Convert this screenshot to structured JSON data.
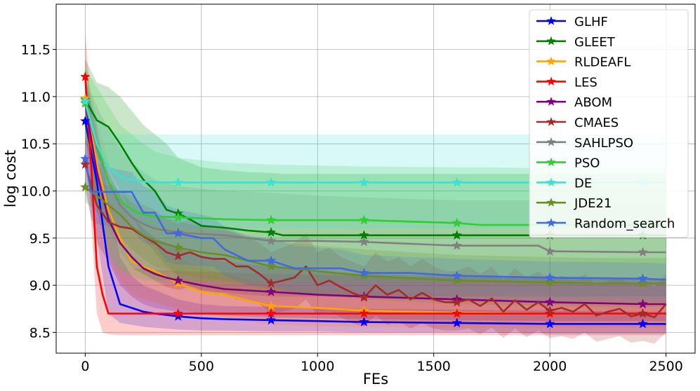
{
  "chart_data": {
    "type": "line",
    "xlabel": "FEs",
    "ylabel": "log cost",
    "xlim": [
      -125,
      2625
    ],
    "ylim": [
      8.28,
      11.98
    ],
    "xticks": [
      0,
      500,
      1000,
      1500,
      2000,
      2500
    ],
    "yticks": [
      8.5,
      9.0,
      9.5,
      10.0,
      10.5,
      11.0,
      11.5
    ],
    "xtick_labels": [
      "0",
      "500",
      "1000",
      "1500",
      "2000",
      "2500"
    ],
    "ytick_labels": [
      "8.5",
      "9.0",
      "9.5",
      "10.0",
      "10.5",
      "11.0",
      "11.5"
    ],
    "grid": true,
    "legend_position": "top-right",
    "marker": "star",
    "marker_x": [
      0,
      400,
      800,
      1200,
      1600,
      2000,
      2400
    ],
    "series": [
      {
        "name": "GLHF",
        "color": "#0000ff",
        "x": [
          0,
          50,
          100,
          150,
          200,
          250,
          300,
          400,
          500,
          600,
          800,
          1000,
          1200,
          1600,
          2000,
          2400,
          2500
        ],
        "y": [
          10.74,
          10.1,
          9.2,
          8.8,
          8.76,
          8.72,
          8.7,
          8.67,
          8.65,
          8.64,
          8.63,
          8.62,
          8.61,
          8.6,
          8.59,
          8.59,
          8.59
        ],
        "band_upper": [
          11.2,
          10.7,
          9.9,
          9.3,
          9.1,
          9.0,
          8.95,
          8.85,
          8.8,
          8.78,
          8.77,
          8.76,
          8.75,
          8.74,
          8.73,
          8.72,
          8.72
        ],
        "band_lower": [
          10.3,
          9.5,
          8.7,
          8.6,
          8.58,
          8.56,
          8.55,
          8.53,
          8.52,
          8.52,
          8.51,
          8.51,
          8.5,
          8.5,
          8.49,
          8.49,
          8.49
        ]
      },
      {
        "name": "GLEET",
        "color": "#008000",
        "x": [
          0,
          50,
          100,
          150,
          200,
          250,
          300,
          350,
          400,
          450,
          500,
          600,
          700,
          800,
          850,
          1000,
          1200,
          1600,
          2000,
          2400,
          2500
        ],
        "y": [
          10.97,
          10.75,
          10.68,
          10.5,
          10.3,
          10.12,
          10.0,
          9.8,
          9.76,
          9.7,
          9.63,
          9.61,
          9.58,
          9.56,
          9.53,
          9.53,
          9.53,
          9.53,
          9.53,
          9.53,
          9.53
        ],
        "band_upper": [
          11.4,
          11.15,
          11.1,
          11.0,
          10.85,
          10.7,
          10.6,
          10.5,
          10.35,
          10.3,
          10.25,
          10.22,
          10.2,
          10.19,
          10.18,
          10.18,
          10.18,
          10.18,
          10.18,
          10.18,
          10.18
        ],
        "band_lower": [
          10.5,
          10.35,
          10.25,
          10.0,
          9.75,
          9.5,
          9.35,
          9.2,
          9.1,
          9.0,
          8.95,
          8.92,
          8.9,
          8.88,
          8.88,
          8.88,
          8.88,
          8.88,
          8.88,
          8.88,
          8.88
        ]
      },
      {
        "name": "RLDEAFL",
        "color": "#ffa500",
        "x": [
          0,
          50,
          100,
          150,
          200,
          250,
          300,
          400,
          500,
          600,
          800,
          1000,
          1200,
          1600,
          2000,
          2400,
          2500
        ],
        "y": [
          10.98,
          10.3,
          9.8,
          9.5,
          9.25,
          9.2,
          9.15,
          9.02,
          8.93,
          8.9,
          8.78,
          8.76,
          8.73,
          8.71,
          8.7,
          8.7,
          8.7
        ],
        "band_upper": [
          11.3,
          10.75,
          10.3,
          9.95,
          9.6,
          9.5,
          9.45,
          9.3,
          9.18,
          9.12,
          9.0,
          8.97,
          8.93,
          8.9,
          8.88,
          8.87,
          8.87
        ],
        "band_lower": [
          10.6,
          9.85,
          9.3,
          9.05,
          8.9,
          8.85,
          8.82,
          8.75,
          8.7,
          8.66,
          8.58,
          8.57,
          8.56,
          8.55,
          8.55,
          8.55,
          8.55
        ]
      },
      {
        "name": "LES",
        "color": "#ff0000",
        "x": [
          0,
          25,
          50,
          75,
          100,
          150,
          200,
          400,
          800,
          1200,
          1600,
          2000,
          2400,
          2500
        ],
        "y": [
          11.21,
          10.3,
          9.2,
          8.9,
          8.7,
          8.7,
          8.7,
          8.7,
          8.7,
          8.7,
          8.7,
          8.7,
          8.7,
          8.7
        ],
        "band_upper": [
          11.7,
          10.9,
          9.9,
          9.5,
          9.25,
          9.2,
          9.18,
          9.15,
          9.12,
          9.1,
          9.08,
          9.07,
          9.06,
          9.06
        ],
        "band_lower": [
          10.7,
          9.7,
          8.7,
          8.5,
          8.48,
          8.47,
          8.47,
          8.47,
          8.47,
          8.47,
          8.47,
          8.47,
          8.47,
          8.47
        ]
      },
      {
        "name": "ABOM",
        "color": "#800080",
        "x": [
          0,
          50,
          100,
          150,
          200,
          250,
          300,
          350,
          400,
          500,
          600,
          800,
          1000,
          1200,
          1600,
          2000,
          2400,
          2500
        ],
        "y": [
          10.93,
          10.2,
          9.7,
          9.45,
          9.3,
          9.18,
          9.12,
          9.08,
          9.05,
          9.0,
          8.96,
          8.93,
          8.9,
          8.88,
          8.85,
          8.82,
          8.8,
          8.8
        ],
        "band_upper": [
          11.2,
          10.6,
          10.2,
          9.95,
          9.75,
          9.6,
          9.5,
          9.45,
          9.4,
          9.3,
          9.25,
          9.2,
          9.15,
          9.12,
          9.1,
          9.08,
          9.06,
          9.06
        ],
        "band_lower": [
          10.65,
          9.8,
          9.25,
          9.0,
          8.88,
          8.8,
          8.76,
          8.74,
          8.72,
          8.7,
          8.68,
          8.66,
          8.65,
          8.64,
          8.63,
          8.62,
          8.62,
          8.62
        ]
      },
      {
        "name": "CMAES",
        "color": "#a52a2a",
        "x": [
          0,
          50,
          100,
          150,
          200,
          250,
          300,
          350,
          400,
          450,
          500,
          550,
          600,
          650,
          700,
          750,
          800,
          850,
          900,
          950,
          1000,
          1050,
          1100,
          1150,
          1200,
          1250,
          1300,
          1350,
          1400,
          1450,
          1500,
          1550,
          1600,
          1650,
          1700,
          1750,
          1800,
          1850,
          1900,
          1950,
          2000,
          2050,
          2100,
          2150,
          2200,
          2250,
          2300,
          2350,
          2400,
          2450,
          2500
        ],
        "y": [
          10.28,
          9.85,
          9.67,
          9.62,
          9.6,
          9.52,
          9.45,
          9.35,
          9.31,
          9.35,
          9.3,
          9.28,
          9.28,
          9.2,
          9.2,
          9.12,
          9.02,
          9.05,
          9.08,
          9.2,
          9.0,
          9.05,
          8.98,
          8.92,
          8.87,
          9.0,
          8.9,
          8.95,
          8.85,
          8.92,
          8.85,
          8.82,
          8.82,
          8.85,
          8.78,
          8.86,
          8.72,
          8.84,
          8.74,
          8.82,
          8.73,
          8.76,
          8.72,
          8.8,
          8.68,
          8.72,
          8.75,
          8.67,
          8.7,
          8.66,
          8.8
        ],
        "band_upper": [
          10.55,
          10.3,
          10.1,
          10.0,
          9.95,
          9.85,
          9.8,
          9.7,
          9.65,
          9.7,
          9.65,
          9.6,
          9.6,
          9.55,
          9.5,
          9.45,
          9.35,
          9.4,
          9.45,
          9.55,
          9.35,
          9.4,
          9.3,
          9.25,
          9.2,
          9.35,
          9.25,
          9.3,
          9.2,
          9.28,
          9.2,
          9.15,
          9.15,
          9.2,
          9.12,
          9.2,
          9.05,
          9.18,
          9.08,
          9.15,
          9.05,
          9.1,
          9.05,
          9.12,
          9.0,
          9.05,
          9.08,
          9.0,
          9.02,
          8.98,
          9.12
        ],
        "band_lower": [
          10.0,
          9.45,
          9.25,
          9.2,
          9.18,
          9.12,
          9.05,
          8.98,
          8.95,
          8.98,
          8.94,
          8.92,
          8.92,
          8.85,
          8.85,
          8.8,
          8.7,
          8.72,
          8.75,
          8.85,
          8.68,
          8.72,
          8.66,
          8.6,
          8.56,
          8.68,
          8.58,
          8.62,
          8.54,
          8.6,
          8.54,
          8.52,
          8.52,
          8.54,
          8.48,
          8.55,
          8.44,
          8.54,
          8.45,
          8.52,
          8.44,
          8.46,
          8.43,
          8.5,
          8.4,
          8.43,
          8.46,
          8.39,
          8.41,
          8.38,
          8.5
        ]
      },
      {
        "name": "SAHLPSO",
        "color": "#808080",
        "x": [
          0,
          50,
          100,
          150,
          200,
          250,
          300,
          400,
          600,
          800,
          1000,
          1200,
          1600,
          1950,
          2000,
          2400,
          2500
        ],
        "y": [
          10.93,
          10.45,
          10.1,
          9.85,
          9.72,
          9.65,
          9.6,
          9.56,
          9.53,
          9.47,
          9.47,
          9.46,
          9.42,
          9.42,
          9.36,
          9.35,
          9.35
        ],
        "band_upper": [
          11.2,
          10.9,
          10.65,
          10.45,
          10.3,
          10.2,
          10.12,
          10.05,
          10.0,
          9.98,
          9.95,
          9.93,
          9.9,
          9.9,
          9.88,
          9.85,
          9.85
        ],
        "band_lower": [
          10.65,
          10.0,
          9.6,
          9.35,
          9.2,
          9.12,
          9.05,
          9.0,
          8.95,
          8.93,
          8.92,
          8.92,
          8.9,
          8.9,
          8.88,
          8.86,
          8.86
        ]
      },
      {
        "name": "PSO",
        "color": "#32cd32",
        "x": [
          0,
          50,
          100,
          150,
          200,
          250,
          300,
          400,
          600,
          800,
          1000,
          1200,
          1600,
          1700,
          2000,
          2400,
          2500
        ],
        "y": [
          10.93,
          10.5,
          10.1,
          9.9,
          9.8,
          9.75,
          9.73,
          9.72,
          9.7,
          9.69,
          9.69,
          9.69,
          9.66,
          9.64,
          9.64,
          9.64,
          9.64
        ],
        "band_upper": [
          11.3,
          11.1,
          10.9,
          10.7,
          10.6,
          10.5,
          10.42,
          10.35,
          10.3,
          10.28,
          10.27,
          10.26,
          10.25,
          10.25,
          10.24,
          10.24,
          10.24
        ],
        "band_lower": [
          10.55,
          9.9,
          9.35,
          9.15,
          9.1,
          9.05,
          9.05,
          9.05,
          9.04,
          9.04,
          9.04,
          9.04,
          9.03,
          9.03,
          9.03,
          9.03,
          9.03
        ]
      },
      {
        "name": "DE",
        "color": "#40e0d0",
        "x": [
          0,
          50,
          100,
          150,
          200,
          250,
          300,
          400,
          800,
          1200,
          1600,
          2000,
          2400,
          2500
        ],
        "y": [
          10.95,
          10.5,
          10.25,
          10.15,
          10.12,
          10.1,
          10.09,
          10.09,
          10.09,
          10.09,
          10.09,
          10.09,
          10.09,
          10.09
        ],
        "band_upper": [
          11.3,
          10.8,
          10.65,
          10.6,
          10.6,
          10.6,
          10.6,
          10.6,
          10.6,
          10.6,
          10.6,
          10.6,
          10.6,
          10.6
        ],
        "band_lower": [
          10.6,
          10.15,
          9.9,
          9.75,
          9.7,
          9.65,
          9.62,
          9.6,
          9.6,
          9.6,
          9.6,
          9.6,
          9.6,
          9.6
        ]
      },
      {
        "name": "JDE21",
        "color": "#6b8e23",
        "x": [
          0,
          50,
          100,
          150,
          200,
          250,
          300,
          400,
          500,
          600,
          800,
          1000,
          1200,
          1600,
          2000,
          2200,
          2400,
          2500
        ],
        "y": [
          10.04,
          9.95,
          9.85,
          9.75,
          9.62,
          9.53,
          9.47,
          9.4,
          9.35,
          9.32,
          9.2,
          9.15,
          9.1,
          9.05,
          9.03,
          9.02,
          9.02,
          9.02
        ],
        "band_upper": [
          10.2,
          10.12,
          10.05,
          9.98,
          9.88,
          9.8,
          9.75,
          9.68,
          9.62,
          9.58,
          9.48,
          9.42,
          9.38,
          9.32,
          9.3,
          9.29,
          9.29,
          9.29
        ],
        "band_lower": [
          9.88,
          9.78,
          9.65,
          9.52,
          9.38,
          9.28,
          9.2,
          9.12,
          9.08,
          9.05,
          8.95,
          8.9,
          8.85,
          8.8,
          8.78,
          8.77,
          8.77,
          8.77
        ]
      },
      {
        "name": "Random_search",
        "color": "#4169e1",
        "x": [
          0,
          25,
          50,
          100,
          200,
          250,
          300,
          350,
          400,
          500,
          550,
          600,
          700,
          800,
          900,
          1000,
          1100,
          1200,
          1400,
          1600,
          2000,
          2400,
          2500
        ],
        "y": [
          10.34,
          9.99,
          9.99,
          9.99,
          9.99,
          9.77,
          9.77,
          9.55,
          9.55,
          9.5,
          9.5,
          9.38,
          9.26,
          9.26,
          9.18,
          9.18,
          9.18,
          9.13,
          9.13,
          9.1,
          9.08,
          9.07,
          9.06
        ],
        "band_upper": [
          10.6,
          10.35,
          10.3,
          10.25,
          10.2,
          10.05,
          10.0,
          9.85,
          9.8,
          9.75,
          9.72,
          9.62,
          9.52,
          9.5,
          9.42,
          9.4,
          9.38,
          9.32,
          9.3,
          9.28,
          9.25,
          9.24,
          9.23
        ],
        "band_lower": [
          10.08,
          9.7,
          9.65,
          9.62,
          9.6,
          9.45,
          9.42,
          9.25,
          9.22,
          9.2,
          9.2,
          9.1,
          9.0,
          8.98,
          8.92,
          8.9,
          8.9,
          8.86,
          8.86,
          8.84,
          8.83,
          8.82,
          8.82
        ]
      }
    ]
  }
}
